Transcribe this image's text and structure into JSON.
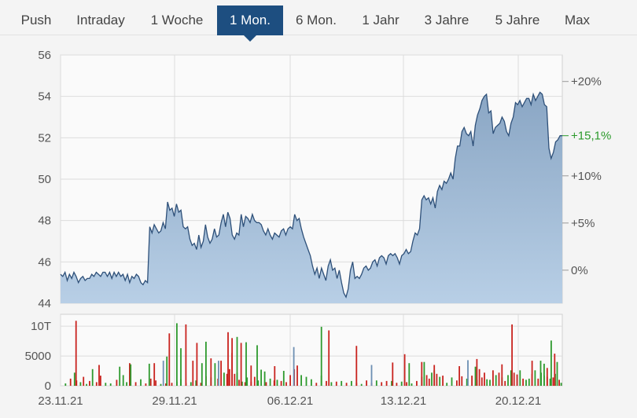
{
  "tabs": [
    {
      "label": "Push",
      "active": false
    },
    {
      "label": "Intraday",
      "active": false
    },
    {
      "label": "1 Woche",
      "active": false
    },
    {
      "label": "1 Mon.",
      "active": true
    },
    {
      "label": "6 Mon.",
      "active": false
    },
    {
      "label": "1 Jahr",
      "active": false
    },
    {
      "label": "3 Jahre",
      "active": false
    },
    {
      "label": "5 Jahre",
      "active": false
    },
    {
      "label": "Max",
      "active": false
    }
  ],
  "colors": {
    "active_tab": "#1d4e80",
    "price_line": "#2e5079",
    "area_top": "#8aa6c4",
    "area_bottom": "#b8cfe6",
    "volume_up": "#2e9a2e",
    "volume_down": "#c9231f",
    "volume_neutral": "#6d8fb3",
    "highlight_label": "#2b9a2b"
  },
  "chart_data": [
    {
      "type": "area",
      "grid": true,
      "ylim": [
        44,
        56
      ],
      "y_ticks": [
        "56",
        "54",
        "52",
        "50",
        "48",
        "46",
        "44"
      ],
      "x_ticks": [
        "23.11.21",
        "29.11.21",
        "06.12.21",
        "13.12.21",
        "20.12.21"
      ],
      "y_right_ticks": [
        "+20%",
        "+10%",
        "+5%",
        "0%"
      ],
      "y_right_highlight": "+15,1%",
      "baseline": 45.6,
      "series": [
        {
          "values": [
            45.4,
            45.3,
            45.5,
            45.1,
            45.4,
            45.2,
            45.5,
            45.3,
            45.0,
            45.2,
            45.3,
            45.1,
            45.2,
            45.2,
            45.4,
            45.3,
            45.5,
            45.4,
            45.3,
            45.5,
            45.5,
            45.3,
            45.5,
            45.2,
            45.5,
            45.3,
            45.5,
            45.3,
            45.4,
            45.1,
            45.4,
            45.0,
            45.3,
            45.2,
            45.4,
            45.3,
            45.0,
            44.9,
            45.1,
            45.0,
            47.7,
            47.4,
            47.8,
            47.6,
            47.4,
            47.5,
            47.9,
            47.6,
            48.9,
            48.5,
            48.6,
            48.2,
            48.8,
            48.4,
            48.5,
            47.7,
            47.6,
            47.7,
            47.1,
            46.8,
            46.9,
            46.6,
            47.3,
            46.7,
            47.0,
            47.8,
            47.2,
            46.9,
            47.1,
            47.6,
            47.2,
            47.3,
            47.9,
            48.3,
            47.7,
            48.4,
            48.1,
            47.3,
            47.1,
            47.4,
            47.3,
            48.3,
            47.7,
            48.2,
            48.1,
            47.9,
            48.3,
            48.0,
            47.9,
            47.9,
            47.8,
            47.5,
            47.3,
            47.6,
            47.3,
            47.1,
            47.4,
            47.3,
            47.2,
            47.5,
            47.6,
            47.3,
            47.6,
            47.7,
            47.6,
            48.3,
            48.0,
            48.1,
            47.6,
            47.2,
            46.9,
            46.6,
            46.3,
            45.8,
            45.4,
            45.7,
            45.2,
            45.7,
            45.4,
            45.1,
            45.8,
            46.1,
            45.6,
            45.7,
            45.2,
            45.6,
            45.0,
            44.5,
            44.3,
            44.7,
            45.6,
            46.0,
            45.2,
            45.3,
            45.2,
            45.4,
            45.7,
            45.8,
            45.6,
            45.7,
            46.0,
            46.1,
            45.8,
            46.2,
            46.3,
            46.2,
            45.9,
            46.3,
            46.4,
            46.3,
            46.4,
            46.2,
            45.9,
            46.3,
            46.4,
            46.6,
            46.4,
            46.5,
            47.0,
            47.4,
            47.3,
            47.6,
            49.0,
            49.2,
            49.0,
            49.1,
            48.8,
            49.1,
            48.6,
            49.4,
            49.7,
            49.5,
            49.9,
            49.8,
            50.0,
            50.3,
            50.0,
            51.0,
            51.6,
            51.6,
            52.3,
            52.5,
            52.2,
            52.1,
            52.3,
            51.6,
            52.6,
            53.1,
            53.4,
            53.8,
            54.0,
            54.1,
            53.2,
            53.3,
            52.2,
            52.5,
            52.6,
            52.7,
            53.0,
            52.8,
            52.3,
            52.1,
            52.7,
            53.0,
            53.7,
            53.6,
            53.8,
            53.5,
            53.7,
            53.9,
            53.9,
            53.6,
            54.1,
            53.8,
            54.0,
            54.2,
            54.1,
            53.6,
            53.5,
            51.5,
            51.0,
            51.3,
            51.8,
            51.9,
            52.1,
            52.1
          ]
        }
      ]
    },
    {
      "type": "bar",
      "grid": true,
      "ylim": [
        0,
        12000
      ],
      "y_ticks": [
        "10T",
        "5000",
        "0"
      ],
      "x_ticks": [
        "23.11.21",
        "29.11.21",
        "06.12.21",
        "13.12.21",
        "20.12.21"
      ],
      "bars": [
        [
          0.01,
          400,
          "g"
        ],
        [
          0.02,
          1200,
          "r"
        ],
        [
          0.028,
          2200,
          "g"
        ],
        [
          0.032,
          900,
          "r"
        ],
        [
          0.04,
          600,
          "g"
        ],
        [
          0.046,
          1500,
          "r"
        ],
        [
          0.052,
          300,
          "g"
        ],
        [
          0.058,
          800,
          "r"
        ],
        [
          0.064,
          2800,
          "g"
        ],
        [
          0.072,
          600,
          "r"
        ],
        [
          0.08,
          1700,
          "r"
        ],
        [
          0.09,
          500,
          "g"
        ],
        [
          0.1,
          400,
          "g"
        ],
        [
          0.112,
          1000,
          "r"
        ],
        [
          0.118,
          3200,
          "g"
        ],
        [
          0.125,
          1800,
          "g"
        ],
        [
          0.132,
          600,
          "g"
        ],
        [
          0.138,
          3800,
          "r"
        ],
        [
          0.15,
          600,
          "r"
        ],
        [
          0.16,
          1100,
          "g"
        ],
        [
          0.17,
          400,
          "r"
        ],
        [
          0.18,
          1200,
          "r"
        ],
        [
          0.19,
          900,
          "r"
        ],
        [
          0.2,
          300,
          "g"
        ],
        [
          0.21,
          400,
          "r"
        ],
        [
          0.222,
          500,
          "r"
        ],
        [
          0.232,
          700,
          "g"
        ],
        [
          0.24,
          1100,
          "g"
        ],
        [
          0.25,
          500,
          "r"
        ],
        [
          0.26,
          600,
          "g"
        ],
        [
          0.27,
          900,
          "g"
        ],
        [
          0.28,
          500,
          "r"
        ],
        [
          0.29,
          1600,
          "r"
        ],
        [
          0.3,
          1400,
          "g"
        ],
        [
          0.308,
          3800,
          "g"
        ],
        [
          0.314,
          1200,
          "r"
        ],
        [
          0.32,
          4200,
          "r"
        ],
        [
          0.326,
          2200,
          "g"
        ],
        [
          0.332,
          2000,
          "r"
        ],
        [
          0.337,
          2800,
          "r"
        ],
        [
          0.342,
          5500,
          "r"
        ],
        [
          0.347,
          2000,
          "r"
        ],
        [
          0.352,
          2200,
          "g"
        ],
        [
          0.356,
          1000,
          "r"
        ],
        [
          0.362,
          700,
          "g"
        ],
        [
          0.368,
          600,
          "r"
        ],
        [
          0.372,
          1400,
          "g"
        ],
        [
          0.38,
          700,
          "r"
        ],
        [
          0.387,
          1500,
          "r"
        ],
        [
          0.394,
          900,
          "g"
        ],
        [
          0.4,
          2700,
          "g"
        ],
        [
          0.41,
          600,
          "r"
        ],
        [
          0.418,
          1200,
          "g"
        ],
        [
          0.426,
          900,
          "r"
        ],
        [
          0.432,
          1000,
          "g"
        ],
        [
          0.44,
          800,
          "r"
        ],
        [
          0.45,
          600,
          "r"
        ],
        [
          0.458,
          1800,
          "r"
        ],
        [
          0.466,
          2800,
          "r"
        ],
        [
          0.472,
          3400,
          "r"
        ],
        [
          0.48,
          1800,
          "g"
        ],
        [
          0.49,
          1500,
          "g"
        ],
        [
          0.5,
          1100,
          "g"
        ],
        [
          0.51,
          500,
          "r"
        ],
        [
          0.52,
          1700,
          "g"
        ],
        [
          0.53,
          800,
          "r"
        ],
        [
          0.54,
          600,
          "g"
        ],
        [
          0.55,
          700,
          "r"
        ],
        [
          0.56,
          800,
          "g"
        ],
        [
          0.57,
          500,
          "r"
        ],
        [
          0.58,
          800,
          "g"
        ],
        [
          0.59,
          500,
          "r"
        ],
        [
          0.6,
          300,
          "g"
        ],
        [
          0.61,
          900,
          "r"
        ],
        [
          0.62,
          500,
          "r"
        ],
        [
          0.63,
          900,
          "g"
        ],
        [
          0.64,
          600,
          "r"
        ],
        [
          0.65,
          800,
          "r"
        ],
        [
          0.66,
          800,
          "g"
        ],
        [
          0.67,
          500,
          "r"
        ],
        [
          0.68,
          700,
          "g"
        ],
        [
          0.69,
          600,
          "r"
        ],
        [
          0.7,
          400,
          "g"
        ],
        [
          0.71,
          800,
          "r"
        ],
        [
          0.72,
          1500,
          "g"
        ],
        [
          0.725,
          4000,
          "g"
        ],
        [
          0.73,
          1800,
          "r"
        ],
        [
          0.735,
          1200,
          "r"
        ],
        [
          0.74,
          2200,
          "g"
        ],
        [
          0.745,
          2600,
          "g"
        ],
        [
          0.75,
          2000,
          "r"
        ],
        [
          0.756,
          1500,
          "g"
        ],
        [
          0.762,
          1700,
          "r"
        ],
        [
          0.77,
          500,
          "g"
        ],
        [
          0.78,
          1400,
          "g"
        ],
        [
          0.79,
          900,
          "r"
        ],
        [
          0.8,
          1600,
          "r"
        ],
        [
          0.81,
          1200,
          "g"
        ],
        [
          0.82,
          1700,
          "r"
        ],
        [
          0.83,
          1000,
          "g"
        ],
        [
          0.84,
          1400,
          "r"
        ],
        [
          0.85,
          1100,
          "g"
        ],
        [
          0.856,
          1000,
          "g"
        ],
        [
          0.862,
          2600,
          "r"
        ],
        [
          0.868,
          1800,
          "g"
        ],
        [
          0.874,
          2200,
          "r"
        ],
        [
          0.88,
          1400,
          "g"
        ],
        [
          0.886,
          800,
          "r"
        ],
        [
          0.892,
          1800,
          "g"
        ],
        [
          0.898,
          2600,
          "g"
        ],
        [
          0.904,
          2200,
          "r"
        ],
        [
          0.91,
          1900,
          "r"
        ],
        [
          0.916,
          2600,
          "g"
        ],
        [
          0.922,
          1200,
          "r"
        ],
        [
          0.928,
          1000,
          "g"
        ],
        [
          0.934,
          1200,
          "g"
        ],
        [
          0.94,
          2000,
          "r"
        ],
        [
          0.946,
          2600,
          "g"
        ],
        [
          0.952,
          1200,
          "r"
        ],
        [
          0.958,
          2200,
          "g"
        ],
        [
          0.964,
          1700,
          "g"
        ],
        [
          0.97,
          1500,
          "r"
        ],
        [
          0.976,
          1200,
          "g"
        ],
        [
          0.982,
          1400,
          "r"
        ],
        [
          0.986,
          2000,
          "g"
        ],
        [
          0.99,
          4000,
          "g"
        ],
        [
          0.994,
          1000,
          "r"
        ],
        [
          0.998,
          500,
          "g"
        ],
        [
          0.031,
          10900,
          "r"
        ],
        [
          0.077,
          3500,
          "r"
        ],
        [
          0.14,
          3600,
          "g"
        ],
        [
          0.177,
          3700,
          "g"
        ],
        [
          0.187,
          3800,
          "r"
        ],
        [
          0.205,
          4200,
          "b"
        ],
        [
          0.212,
          4900,
          "g"
        ],
        [
          0.217,
          8800,
          "r"
        ],
        [
          0.232,
          10500,
          "g"
        ],
        [
          0.24,
          6300,
          "g"
        ],
        [
          0.25,
          10300,
          "r"
        ],
        [
          0.264,
          4200,
          "r"
        ],
        [
          0.272,
          7200,
          "r"
        ],
        [
          0.282,
          3800,
          "g"
        ],
        [
          0.29,
          7400,
          "g"
        ],
        [
          0.3,
          4600,
          "r"
        ],
        [
          0.315,
          4200,
          "b"
        ],
        [
          0.334,
          9000,
          "r"
        ],
        [
          0.342,
          8000,
          "r"
        ],
        [
          0.352,
          8200,
          "g"
        ],
        [
          0.36,
          7200,
          "r"
        ],
        [
          0.37,
          7300,
          "g"
        ],
        [
          0.38,
          3400,
          "r"
        ],
        [
          0.392,
          6800,
          "g"
        ],
        [
          0.407,
          2400,
          "g"
        ],
        [
          0.427,
          3300,
          "r"
        ],
        [
          0.445,
          2500,
          "g"
        ],
        [
          0.465,
          6500,
          "b"
        ],
        [
          0.52,
          9900,
          "g"
        ],
        [
          0.535,
          9300,
          "r"
        ],
        [
          0.59,
          6700,
          "r"
        ],
        [
          0.62,
          3500,
          "b"
        ],
        [
          0.662,
          3900,
          "r"
        ],
        [
          0.686,
          5300,
          "r"
        ],
        [
          0.695,
          3800,
          "g"
        ],
        [
          0.72,
          4000,
          "r"
        ],
        [
          0.745,
          3500,
          "r"
        ],
        [
          0.835,
          2800,
          "r"
        ],
        [
          0.9,
          10300,
          "r"
        ],
        [
          0.94,
          4200,
          "r"
        ],
        [
          0.964,
          3700,
          "g"
        ],
        [
          0.978,
          7600,
          "g"
        ],
        [
          0.985,
          5400,
          "r"
        ],
        [
          0.957,
          4200,
          "g"
        ],
        [
          0.97,
          3000,
          "r"
        ],
        [
          0.88,
          3600,
          "r"
        ],
        [
          0.827,
          3200,
          "g"
        ],
        [
          0.812,
          4300,
          "b"
        ],
        [
          0.83,
          4500,
          "r"
        ],
        [
          0.845,
          2200,
          "r"
        ],
        [
          0.795,
          3300,
          "r"
        ]
      ]
    }
  ]
}
